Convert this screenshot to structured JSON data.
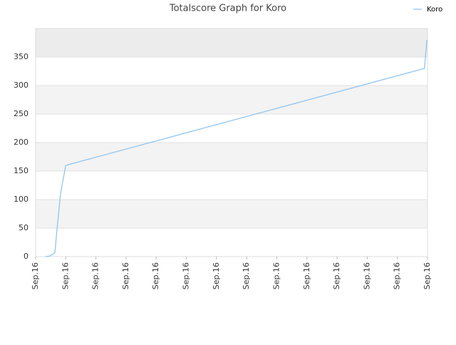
{
  "chart_data": {
    "type": "line",
    "title": "Totalscore Graph for Koro",
    "x": [
      0.33,
      0.47,
      0.64,
      0.69,
      0.83,
      1.0,
      12.9,
      12.98
    ],
    "series": [
      {
        "name": "Koro",
        "color": "#90c4ee",
        "values": [
          0,
          1,
          7,
          37,
          112,
          160,
          330,
          380
        ]
      }
    ],
    "xlim": [
      0,
      13
    ],
    "xticks": [
      {
        "value": 0,
        "label": "Sep.16"
      },
      {
        "value": 1,
        "label": "Sep.16"
      },
      {
        "value": 2,
        "label": "Sep.16"
      },
      {
        "value": 3,
        "label": "Sep.16"
      },
      {
        "value": 4,
        "label": "Sep.16"
      },
      {
        "value": 5,
        "label": "Sep.16"
      },
      {
        "value": 6,
        "label": "Sep.16"
      },
      {
        "value": 7,
        "label": "Sep.16"
      },
      {
        "value": 8,
        "label": "Sep.16"
      },
      {
        "value": 9,
        "label": "Sep.16"
      },
      {
        "value": 10,
        "label": "Sep.16"
      },
      {
        "value": 11,
        "label": "Sep.16"
      },
      {
        "value": 12,
        "label": "Sep.16"
      },
      {
        "value": 13,
        "label": "Sep.16"
      }
    ],
    "ylim": [
      0,
      400
    ],
    "yticks": [
      0,
      50,
      100,
      150,
      200,
      250,
      300,
      350
    ],
    "grid": true,
    "legend": "top-right"
  }
}
